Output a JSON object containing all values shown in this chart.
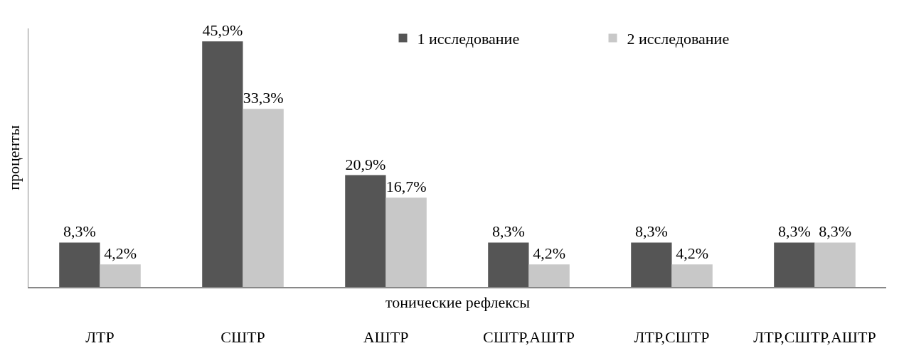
{
  "chart_data": {
    "type": "bar",
    "xlabel": "тонические рефлексы",
    "ylabel": "проценты",
    "categories": [
      "ЛТР",
      "СШТР",
      "АШТР",
      "СШТР,АШТР",
      "ЛТР,СШТР",
      "ЛТР,СШТР,АШТР"
    ],
    "series": [
      {
        "name": "1 исследование",
        "color": "#555555",
        "values": [
          8.3,
          45.9,
          20.9,
          8.3,
          8.3,
          8.3
        ],
        "value_labels": [
          "8,3%",
          "45,9%",
          "20,9%",
          "8,3%",
          "8,3%",
          "8,3%"
        ]
      },
      {
        "name": "2 исследование",
        "color": "#c8c8c8",
        "values": [
          4.2,
          33.3,
          16.7,
          4.2,
          4.2,
          8.3
        ],
        "value_labels": [
          "4,2%",
          "33,3%",
          "16,7%",
          "4,2%",
          "4,2%",
          "8,3%"
        ]
      }
    ],
    "legend": "top right",
    "grid": false
  }
}
